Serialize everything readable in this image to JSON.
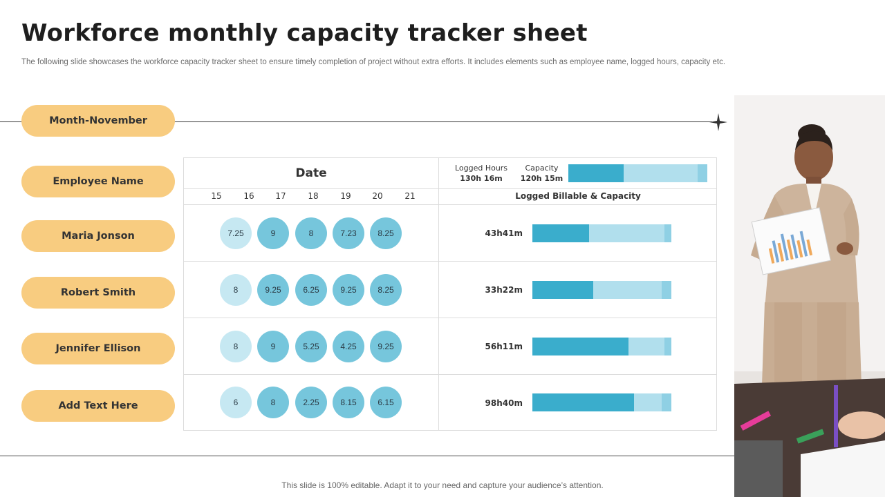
{
  "title": "Workforce monthly capacity tracker sheet",
  "subtitle": "The following slide showcases the workforce capacity tracker sheet to ensure timely completion of project without extra efforts. It includes elements such as employee name, logged hours, capacity etc.",
  "month_label": "Month-November",
  "employee_header": "Employee Name",
  "date_header": "Date",
  "days": [
    "15",
    "16",
    "17",
    "18",
    "19",
    "20",
    "21"
  ],
  "summary": {
    "logged_label": "Logged Hours",
    "logged_value": "130h 16m",
    "capacity_label": "Capacity",
    "capacity_value": "120h 15m",
    "billable_fraction": 0.4,
    "capacity_fraction": 0.93
  },
  "lbc_header": "Logged Billable & Capacity",
  "employees": [
    {
      "name": "Maria Jonson",
      "values": [
        "7.25",
        "9",
        "8",
        "7.23",
        "8.25"
      ],
      "hours": "43h41m",
      "billable_fraction": 0.41,
      "capacity_fraction": 0.95
    },
    {
      "name": "Robert Smith",
      "values": [
        "8",
        "9.25",
        "6.25",
        "9.25",
        "8.25"
      ],
      "hours": "33h22m",
      "billable_fraction": 0.44,
      "capacity_fraction": 0.93
    },
    {
      "name": "Jennifer Ellison",
      "values": [
        "8",
        "9",
        "5.25",
        "4.25",
        "9.25"
      ],
      "hours": "56h11m",
      "billable_fraction": 0.69,
      "capacity_fraction": 0.95
    },
    {
      "name": "Add Text Here",
      "values": [
        "6",
        "8",
        "2.25",
        "8.15",
        "6.15"
      ],
      "hours": "98h40m",
      "billable_fraction": 0.73,
      "capacity_fraction": 0.93
    }
  ],
  "footer": "This slide is 100% editable. Adapt it to your need and capture your audience’s attention.",
  "colors": {
    "pill": "#f8cc80",
    "circle": "#76c6dc",
    "circle_light": "#c6e8f2",
    "bar_billable": "#3aadcc",
    "bar_capacity": "#b1dfed",
    "bar_extra": "#8fd0e4"
  }
}
